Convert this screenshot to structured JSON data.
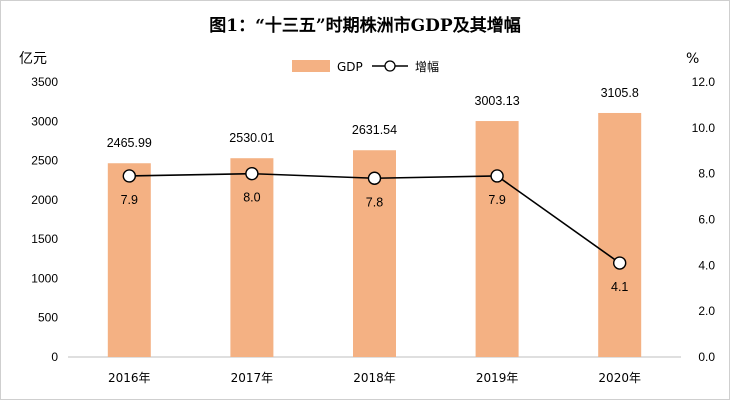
{
  "chart_data": {
    "type": "bar",
    "title": "图1：“十三五”时期株洲市GDP及其增幅",
    "categories": [
      "2016年",
      "2017年",
      "2018年",
      "2019年",
      "2020年"
    ],
    "series": [
      {
        "name": "GDP",
        "type": "bar",
        "axis": "left",
        "color": "#F4B183",
        "values": [
          2465.99,
          2530.01,
          2631.54,
          3003.13,
          3105.8
        ],
        "labels": [
          "2465.99",
          "2530.01",
          "2631.54",
          "3003.13",
          "3105.8"
        ]
      },
      {
        "name": "增幅",
        "type": "line",
        "axis": "right",
        "color": "#000000",
        "values": [
          7.9,
          8.0,
          7.8,
          7.9,
          4.1
        ],
        "labels": [
          "7.9",
          "8.0",
          "7.8",
          "7.9",
          "4.1"
        ]
      }
    ],
    "left_axis": {
      "unit": "亿元",
      "ylim": [
        0,
        3500
      ],
      "ticks": [
        "0",
        "500",
        "1000",
        "1500",
        "2000",
        "2500",
        "3000",
        "3500"
      ]
    },
    "right_axis": {
      "unit": "%",
      "ylim": [
        0,
        12
      ],
      "ticks": [
        "0.0",
        "2.0",
        "4.0",
        "6.0",
        "8.0",
        "10.0",
        "12.0"
      ]
    },
    "legend": {
      "position": "top-center",
      "items": [
        "GDP",
        "增幅"
      ]
    },
    "grid": false
  }
}
